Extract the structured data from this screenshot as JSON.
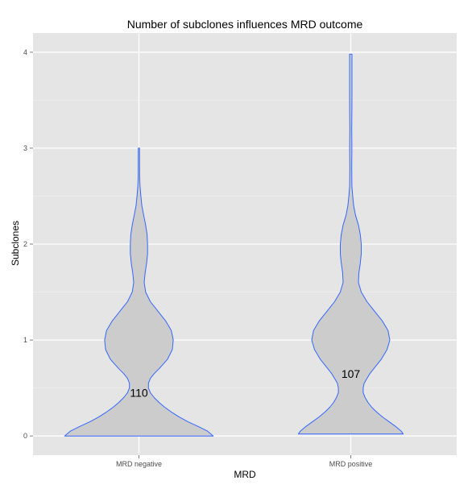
{
  "chart_data": {
    "type": "violin",
    "title": "Number of subclones influences MRD outcome",
    "xlabel": "MRD",
    "ylabel": "Subclones",
    "categories": [
      "MRD negative",
      "MRD positive"
    ],
    "ylim": [
      -0.2,
      4.2
    ],
    "yticks": [
      "0",
      "1",
      "2",
      "3",
      "4"
    ],
    "grid": true,
    "colors": {
      "panel": "#e5e5e5",
      "grid_major": "#ffffff",
      "grid_minor": "#f2f2f2",
      "violin_fill": "#cccccc",
      "violin_stroke": "#3366ff"
    },
    "series": [
      {
        "category": "MRD negative",
        "count_label": "110",
        "label_y": 0.45,
        "y_min": 0,
        "y_max": 3,
        "profile": [
          [
            0.0,
            0.78
          ],
          [
            0.05,
            0.72
          ],
          [
            0.1,
            0.62
          ],
          [
            0.15,
            0.51
          ],
          [
            0.2,
            0.42
          ],
          [
            0.25,
            0.34
          ],
          [
            0.3,
            0.27
          ],
          [
            0.35,
            0.21
          ],
          [
            0.4,
            0.16
          ],
          [
            0.45,
            0.12
          ],
          [
            0.5,
            0.1
          ],
          [
            0.55,
            0.1
          ],
          [
            0.6,
            0.12
          ],
          [
            0.65,
            0.16
          ],
          [
            0.7,
            0.21
          ],
          [
            0.8,
            0.3
          ],
          [
            0.9,
            0.35
          ],
          [
            1.0,
            0.36
          ],
          [
            1.1,
            0.34
          ],
          [
            1.2,
            0.28
          ],
          [
            1.3,
            0.2
          ],
          [
            1.4,
            0.12
          ],
          [
            1.5,
            0.07
          ],
          [
            1.6,
            0.055
          ],
          [
            1.7,
            0.065
          ],
          [
            1.8,
            0.08
          ],
          [
            1.9,
            0.09
          ],
          [
            2.0,
            0.09
          ],
          [
            2.1,
            0.085
          ],
          [
            2.2,
            0.07
          ],
          [
            2.3,
            0.05
          ],
          [
            2.4,
            0.03
          ],
          [
            2.5,
            0.02
          ],
          [
            2.6,
            0.012
          ],
          [
            2.7,
            0.008
          ],
          [
            2.8,
            0.007
          ],
          [
            2.9,
            0.007
          ],
          [
            3.0,
            0.007
          ]
        ]
      },
      {
        "category": "MRD positive",
        "count_label": "107",
        "label_y": 0.65,
        "y_min": 0.02,
        "y_max": 3.98,
        "profile": [
          [
            0.02,
            0.55
          ],
          [
            0.05,
            0.53
          ],
          [
            0.1,
            0.47
          ],
          [
            0.15,
            0.4
          ],
          [
            0.2,
            0.33
          ],
          [
            0.25,
            0.27
          ],
          [
            0.3,
            0.22
          ],
          [
            0.35,
            0.18
          ],
          [
            0.4,
            0.15
          ],
          [
            0.45,
            0.13
          ],
          [
            0.5,
            0.13
          ],
          [
            0.55,
            0.14
          ],
          [
            0.6,
            0.17
          ],
          [
            0.65,
            0.2
          ],
          [
            0.7,
            0.24
          ],
          [
            0.8,
            0.32
          ],
          [
            0.9,
            0.38
          ],
          [
            1.0,
            0.41
          ],
          [
            1.1,
            0.39
          ],
          [
            1.2,
            0.33
          ],
          [
            1.3,
            0.25
          ],
          [
            1.4,
            0.17
          ],
          [
            1.5,
            0.11
          ],
          [
            1.6,
            0.08
          ],
          [
            1.7,
            0.085
          ],
          [
            1.8,
            0.1
          ],
          [
            1.9,
            0.11
          ],
          [
            2.0,
            0.11
          ],
          [
            2.1,
            0.1
          ],
          [
            2.2,
            0.08
          ],
          [
            2.3,
            0.05
          ],
          [
            2.4,
            0.03
          ],
          [
            2.5,
            0.02
          ],
          [
            2.6,
            0.012
          ],
          [
            2.8,
            0.01
          ],
          [
            3.0,
            0.012
          ],
          [
            3.2,
            0.01
          ],
          [
            3.4,
            0.012
          ],
          [
            3.6,
            0.013
          ],
          [
            3.8,
            0.013
          ],
          [
            3.98,
            0.013
          ]
        ]
      }
    ]
  }
}
